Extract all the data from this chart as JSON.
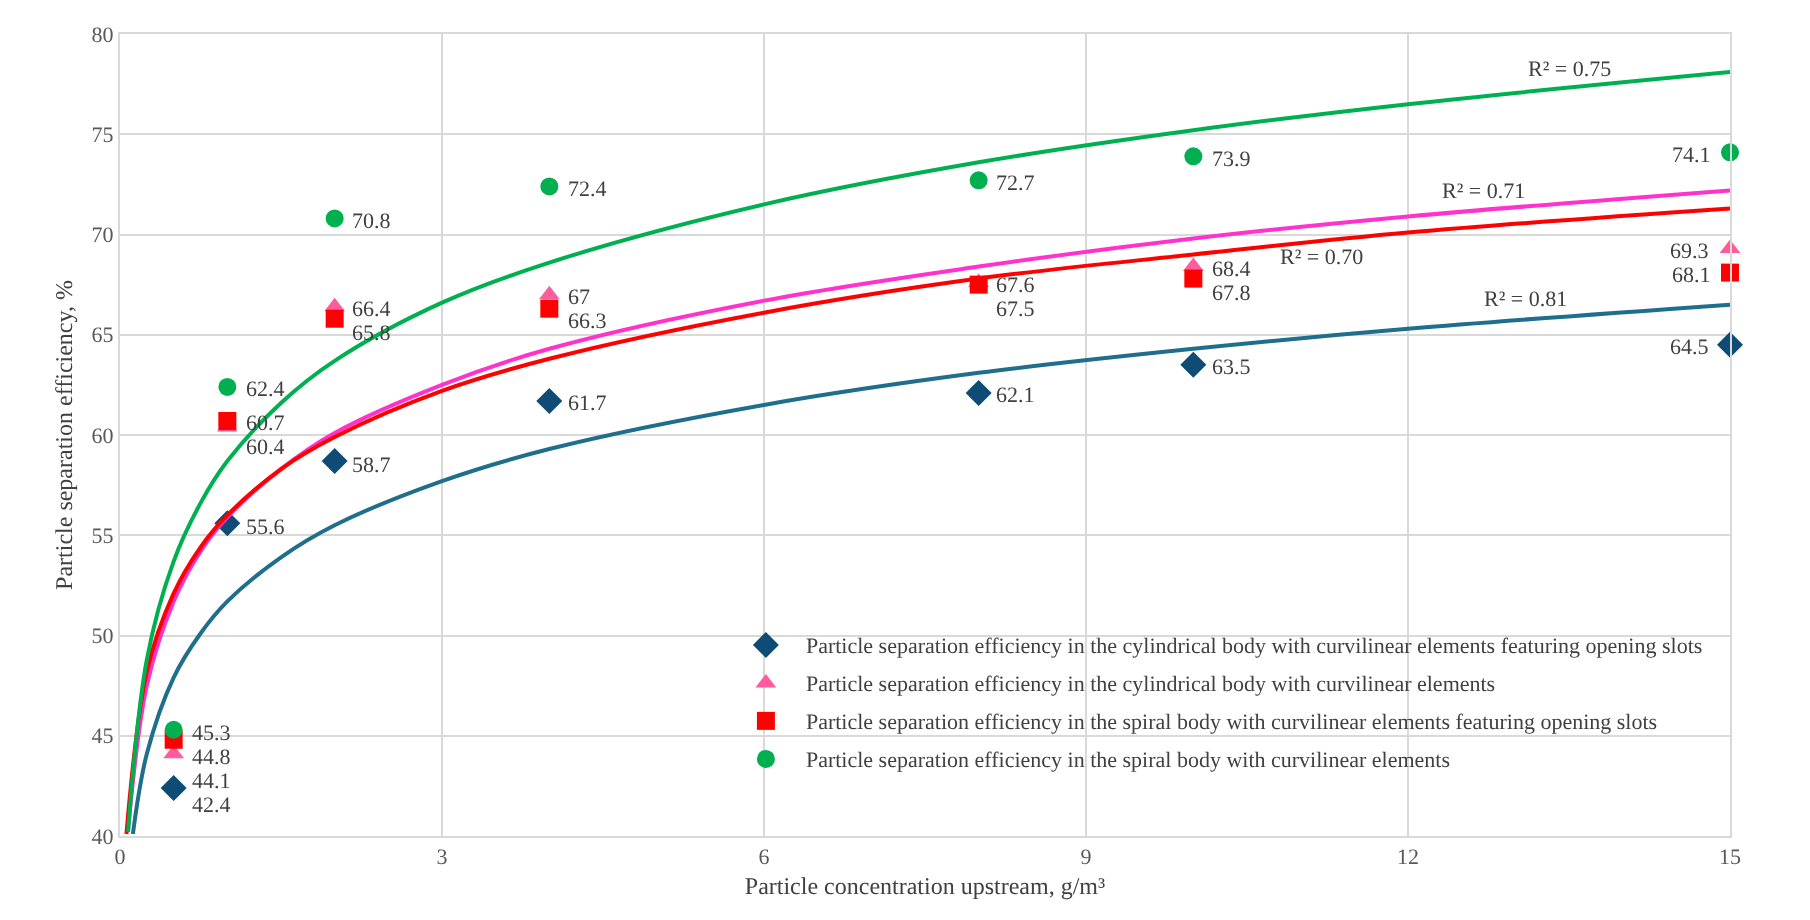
{
  "chart_data": {
    "type": "scatter",
    "xlabel": "Particle concentration upstream, g/m³",
    "ylabel": "Particle separation efficiency, %",
    "x": [
      0.5,
      1,
      2,
      4,
      8,
      10,
      15
    ],
    "series": [
      {
        "name": "Particle separation efficiency in the cylindrical body with curvilinear elements featuring opening slots",
        "color": "#0f4c75",
        "marker": "diamond",
        "values": [
          42.4,
          55.6,
          58.7,
          61.7,
          62.1,
          63.5,
          64.5
        ],
        "value_labels": [
          "42.4",
          "55.6",
          "58.7",
          "61.7",
          "62.1",
          "63.5",
          "64.5"
        ]
      },
      {
        "name": "Particle separation efficiency in the cylindrical body with curvilinear elements",
        "color": "#ff5c9d",
        "marker": "triangle",
        "values": [
          44.1,
          60.4,
          66.4,
          67,
          67.6,
          68.4,
          69.3
        ],
        "value_labels": [
          "44.1",
          "60.4",
          "66.4",
          "67",
          "67.6",
          "68.4",
          "69.3"
        ]
      },
      {
        "name": "Particle separation efficiency in the spiral body with curvilinear elements featuring opening slots",
        "color": "#ff0000",
        "marker": "square",
        "values": [
          44.8,
          60.7,
          65.8,
          66.3,
          67.5,
          67.8,
          68.1
        ],
        "value_labels": [
          "44.8",
          "60.7",
          "65.8",
          "66.3",
          "67.5",
          "67.8",
          "68.1"
        ]
      },
      {
        "name": "Particle separation efficiency in the spiral body with curvilinear elements",
        "color": "#00b050",
        "marker": "circle",
        "values": [
          45.3,
          62.4,
          70.8,
          72.4,
          72.7,
          73.9,
          74.1
        ],
        "value_labels": [
          "45.3",
          "62.4",
          "70.8",
          "72.4",
          "72.7",
          "73.9",
          "74.1"
        ]
      },
      {
        "type": "line",
        "color": "#1f6e8c",
        "x": [
          0.12,
          0.25,
          0.5,
          0.75,
          1,
          1.5,
          2,
          3,
          4,
          6,
          8,
          10,
          12,
          15
        ],
        "values": [
          40.1,
          44.1,
          47.9,
          50.1,
          51.7,
          53.9,
          55.5,
          57.7,
          59.3,
          61.5,
          63.1,
          64.3,
          65.3,
          66.5
        ]
      },
      {
        "type": "line",
        "color": "#ff33cc",
        "x": [
          0.075,
          0.25,
          0.5,
          0.75,
          1,
          1.5,
          2,
          3,
          4,
          6,
          8,
          10,
          12,
          15
        ],
        "values": [
          40.3,
          47.5,
          51.7,
          54.2,
          55.9,
          58.3,
          60.1,
          62.5,
          64.3,
          66.7,
          68.4,
          69.8,
          70.9,
          72.2
        ]
      },
      {
        "type": "line",
        "color": "#ff0000",
        "x": [
          0.06,
          0.25,
          0.5,
          0.75,
          1,
          1.5,
          2,
          3,
          4,
          6,
          8,
          10,
          12,
          15
        ],
        "values": [
          40.1,
          48.2,
          52.1,
          54.4,
          56.0,
          58.3,
          59.9,
          62.2,
          63.8,
          66.1,
          67.8,
          69.0,
          70.1,
          71.3
        ]
      },
      {
        "type": "line",
        "color": "#00b050",
        "x": [
          0.075,
          0.25,
          0.5,
          0.75,
          1,
          1.5,
          2,
          3,
          4,
          6,
          8,
          10,
          12,
          15
        ],
        "values": [
          40.2,
          48.8,
          53.7,
          56.6,
          58.7,
          61.6,
          63.7,
          66.6,
          68.6,
          71.5,
          73.6,
          75.2,
          76.5,
          78.1
        ]
      }
    ],
    "annotations": [
      {
        "text": "R² = 0.75",
        "x": 13.5,
        "y": 77.3
      },
      {
        "text": "R² = 0.71",
        "x": 12.7,
        "y": 71.2
      },
      {
        "text": "R² = 0.70",
        "x": 11.2,
        "y": 69.7
      },
      {
        "text": "R² = 0.81",
        "x": 13.1,
        "y": 65.8
      }
    ],
    "xlim": [
      0,
      15
    ],
    "xticks": [
      0,
      3,
      6,
      9,
      12,
      15
    ],
    "ylim": [
      40,
      80
    ],
    "yticks": [
      40,
      45,
      50,
      55,
      60,
      65,
      70,
      75,
      80
    ],
    "grid": true,
    "legend": "bottom right"
  }
}
